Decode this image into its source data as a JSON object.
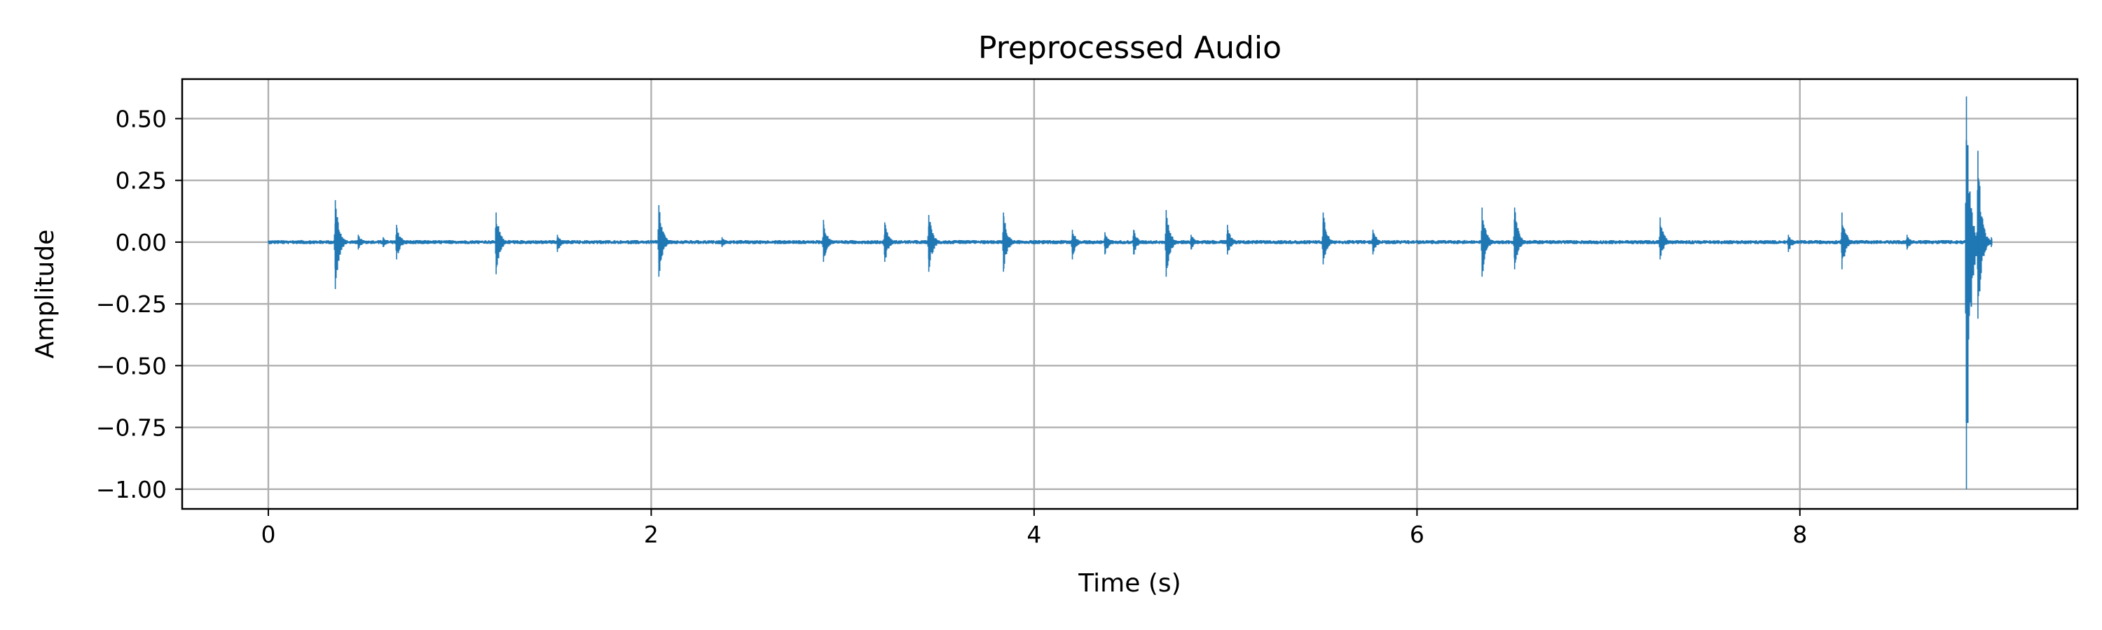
{
  "chart_data": {
    "type": "line",
    "title": "Preprocessed Audio",
    "xlabel": "Time (s)",
    "ylabel": "Amplitude",
    "xlim": [
      -0.45,
      9.45
    ],
    "ylim": [
      -1.08,
      0.66
    ],
    "grid": true,
    "xticks": [
      0,
      2,
      4,
      6,
      8
    ],
    "xtick_labels": [
      "0",
      "2",
      "4",
      "6",
      "8"
    ],
    "yticks": [
      0.5,
      0.25,
      0.0,
      -0.25,
      -0.5,
      -0.75,
      -1.0
    ],
    "ytick_labels": [
      "0.50",
      "0.25",
      "0.00",
      "−0.25",
      "−0.50",
      "−0.75",
      "−1.00"
    ],
    "series": [
      {
        "name": "waveform",
        "color": "#1f77b4",
        "duration": 9.0,
        "noise_amplitude": 0.006,
        "events": [
          {
            "t": 0.35,
            "pos": 0.17,
            "neg": -0.19
          },
          {
            "t": 0.47,
            "pos": 0.03,
            "neg": -0.03
          },
          {
            "t": 0.6,
            "pos": 0.02,
            "neg": -0.02
          },
          {
            "t": 0.67,
            "pos": 0.07,
            "neg": -0.07
          },
          {
            "t": 1.19,
            "pos": 0.12,
            "neg": -0.13
          },
          {
            "t": 1.51,
            "pos": 0.03,
            "neg": -0.04
          },
          {
            "t": 2.04,
            "pos": 0.15,
            "neg": -0.14
          },
          {
            "t": 2.37,
            "pos": 0.02,
            "neg": -0.02
          },
          {
            "t": 2.9,
            "pos": 0.09,
            "neg": -0.08
          },
          {
            "t": 3.22,
            "pos": 0.08,
            "neg": -0.08
          },
          {
            "t": 3.45,
            "pos": 0.11,
            "neg": -0.12
          },
          {
            "t": 3.84,
            "pos": 0.12,
            "neg": -0.12
          },
          {
            "t": 4.2,
            "pos": 0.05,
            "neg": -0.07
          },
          {
            "t": 4.37,
            "pos": 0.04,
            "neg": -0.05
          },
          {
            "t": 4.52,
            "pos": 0.05,
            "neg": -0.05
          },
          {
            "t": 4.69,
            "pos": 0.13,
            "neg": -0.14
          },
          {
            "t": 4.82,
            "pos": 0.03,
            "neg": -0.03
          },
          {
            "t": 5.01,
            "pos": 0.07,
            "neg": -0.05
          },
          {
            "t": 5.51,
            "pos": 0.12,
            "neg": -0.09
          },
          {
            "t": 5.77,
            "pos": 0.05,
            "neg": -0.05
          },
          {
            "t": 6.34,
            "pos": 0.14,
            "neg": -0.14
          },
          {
            "t": 6.51,
            "pos": 0.14,
            "neg": -0.11
          },
          {
            "t": 7.27,
            "pos": 0.1,
            "neg": -0.07
          },
          {
            "t": 7.94,
            "pos": 0.03,
            "neg": -0.04
          },
          {
            "t": 8.22,
            "pos": 0.12,
            "neg": -0.11
          },
          {
            "t": 8.56,
            "pos": 0.03,
            "neg": -0.03
          },
          {
            "t": 8.87,
            "pos": 0.59,
            "neg": -1.0
          },
          {
            "t": 8.93,
            "pos": 0.37,
            "neg": -0.31
          },
          {
            "t": 9.0,
            "pos": 0.02,
            "neg": -0.02
          }
        ]
      }
    ]
  }
}
